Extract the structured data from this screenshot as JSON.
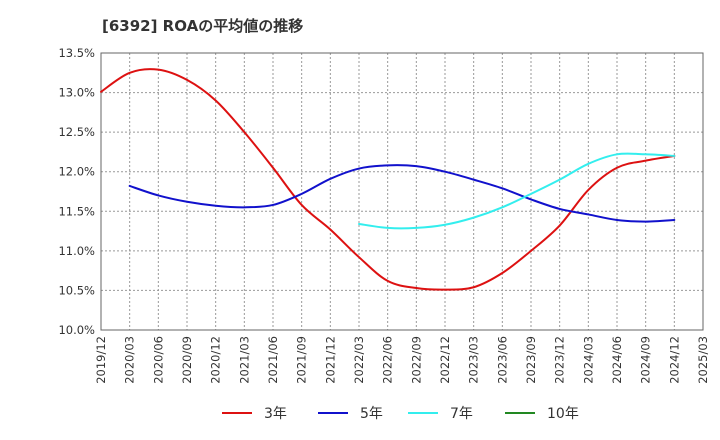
{
  "title": "[6392]  ROAの平均値の推移",
  "chart_data": {
    "type": "line",
    "title": "[6392]  ROAの平均値の推移",
    "xlabel": "",
    "ylabel": "",
    "ylim": [
      10.0,
      13.5
    ],
    "grid": true,
    "legend_position": "bottom",
    "y_ticks": [
      "10.0%",
      "10.5%",
      "11.0%",
      "11.5%",
      "12.0%",
      "12.5%",
      "13.0%",
      "13.5%"
    ],
    "x_ticks": [
      "2019/12",
      "2020/03",
      "2020/06",
      "2020/09",
      "2020/12",
      "2021/03",
      "2021/06",
      "2021/09",
      "2021/12",
      "2022/03",
      "2022/06",
      "2022/09",
      "2022/12",
      "2023/03",
      "2023/06",
      "2023/09",
      "2023/12",
      "2024/03",
      "2024/06",
      "2024/09",
      "2024/12",
      "2025/03"
    ],
    "series": [
      {
        "name": "3年",
        "color": "#dd1111",
        "points": [
          [
            "2019/12",
            13.01
          ],
          [
            "2020/03",
            13.25
          ],
          [
            "2020/06",
            13.29
          ],
          [
            "2020/09",
            13.16
          ],
          [
            "2020/12",
            12.9
          ],
          [
            "2021/03",
            12.5
          ],
          [
            "2021/06",
            12.05
          ],
          [
            "2021/09",
            11.58
          ],
          [
            "2021/12",
            11.27
          ],
          [
            "2022/03",
            10.92
          ],
          [
            "2022/06",
            10.62
          ],
          [
            "2022/09",
            10.53
          ],
          [
            "2022/12",
            10.51
          ],
          [
            "2023/03",
            10.54
          ],
          [
            "2023/06",
            10.72
          ],
          [
            "2023/09",
            11.0
          ],
          [
            "2023/12",
            11.32
          ],
          [
            "2024/03",
            11.77
          ],
          [
            "2024/06",
            12.05
          ],
          [
            "2024/09",
            12.14
          ],
          [
            "2024/12",
            12.2
          ]
        ]
      },
      {
        "name": "5年",
        "color": "#1111cc",
        "points": [
          [
            "2020/03",
            11.82
          ],
          [
            "2020/06",
            11.7
          ],
          [
            "2020/09",
            11.62
          ],
          [
            "2020/12",
            11.57
          ],
          [
            "2021/03",
            11.55
          ],
          [
            "2021/06",
            11.58
          ],
          [
            "2021/09",
            11.72
          ],
          [
            "2021/12",
            11.91
          ],
          [
            "2022/03",
            12.04
          ],
          [
            "2022/06",
            12.08
          ],
          [
            "2022/09",
            12.07
          ],
          [
            "2022/12",
            12.0
          ],
          [
            "2023/03",
            11.9
          ],
          [
            "2023/06",
            11.79
          ],
          [
            "2023/09",
            11.65
          ],
          [
            "2023/12",
            11.53
          ],
          [
            "2024/03",
            11.46
          ],
          [
            "2024/06",
            11.39
          ],
          [
            "2024/09",
            11.37
          ],
          [
            "2024/12",
            11.39
          ]
        ]
      },
      {
        "name": "7年",
        "color": "#33eeee",
        "points": [
          [
            "2022/03",
            11.34
          ],
          [
            "2022/06",
            11.29
          ],
          [
            "2022/09",
            11.29
          ],
          [
            "2022/12",
            11.33
          ],
          [
            "2023/03",
            11.42
          ],
          [
            "2023/06",
            11.55
          ],
          [
            "2023/09",
            11.72
          ],
          [
            "2023/12",
            11.9
          ],
          [
            "2024/03",
            12.1
          ],
          [
            "2024/06",
            12.22
          ],
          [
            "2024/09",
            12.22
          ],
          [
            "2024/12",
            12.2
          ]
        ]
      },
      {
        "name": "10年",
        "color": "#228822",
        "points": []
      }
    ]
  }
}
